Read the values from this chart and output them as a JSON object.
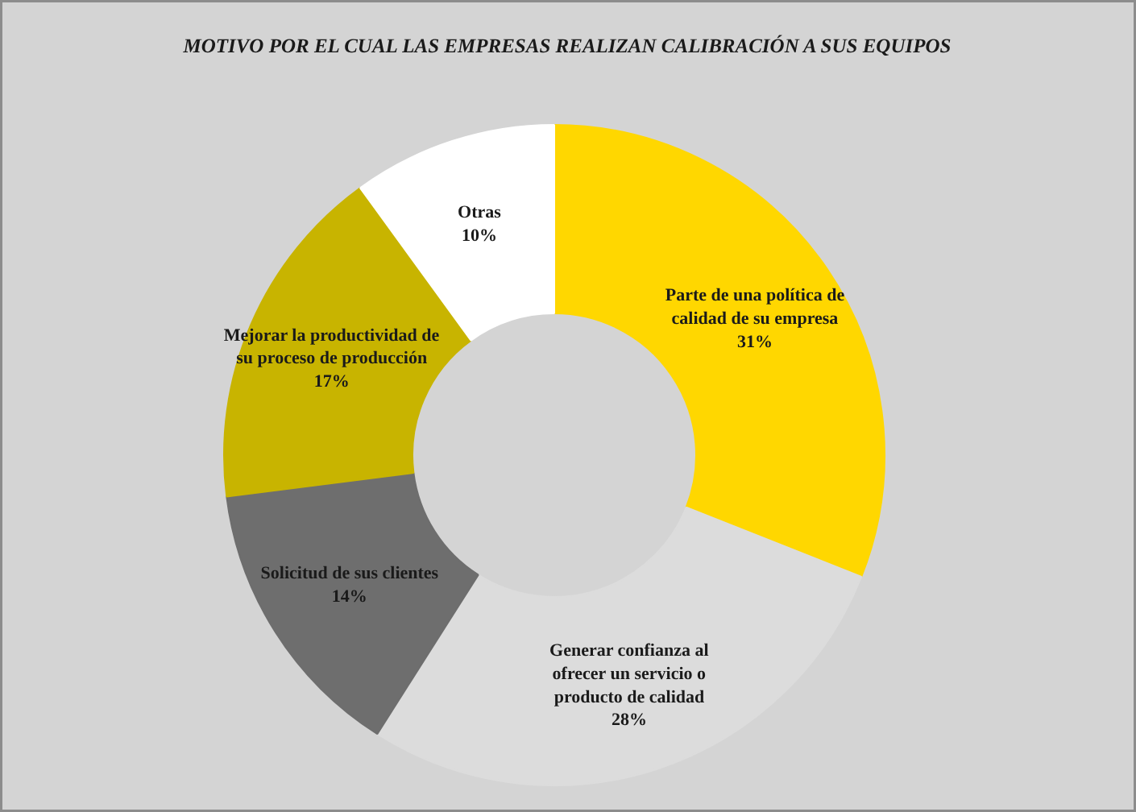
{
  "chart_data": {
    "type": "donut",
    "title": "MOTIVO POR EL CUAL LAS EMPRESAS REALIZAN CALIBRACIÓN A SUS EQUIPOS",
    "categories": [
      "Parte de una política de calidad de su empresa",
      "Generar confianza al ofrecer un servicio o producto de calidad",
      "Solicitud de sus clientes",
      "Mejorar la productividad de su proceso de producción",
      "Otras"
    ],
    "values": [
      31,
      28,
      14,
      17,
      10
    ],
    "value_labels": [
      "31%",
      "28%",
      "14%",
      "17%",
      "10%"
    ],
    "colors": [
      "#ffd700",
      "#dcdcdc",
      "#6e6e6e",
      "#c8b400",
      "#ffffff"
    ]
  }
}
